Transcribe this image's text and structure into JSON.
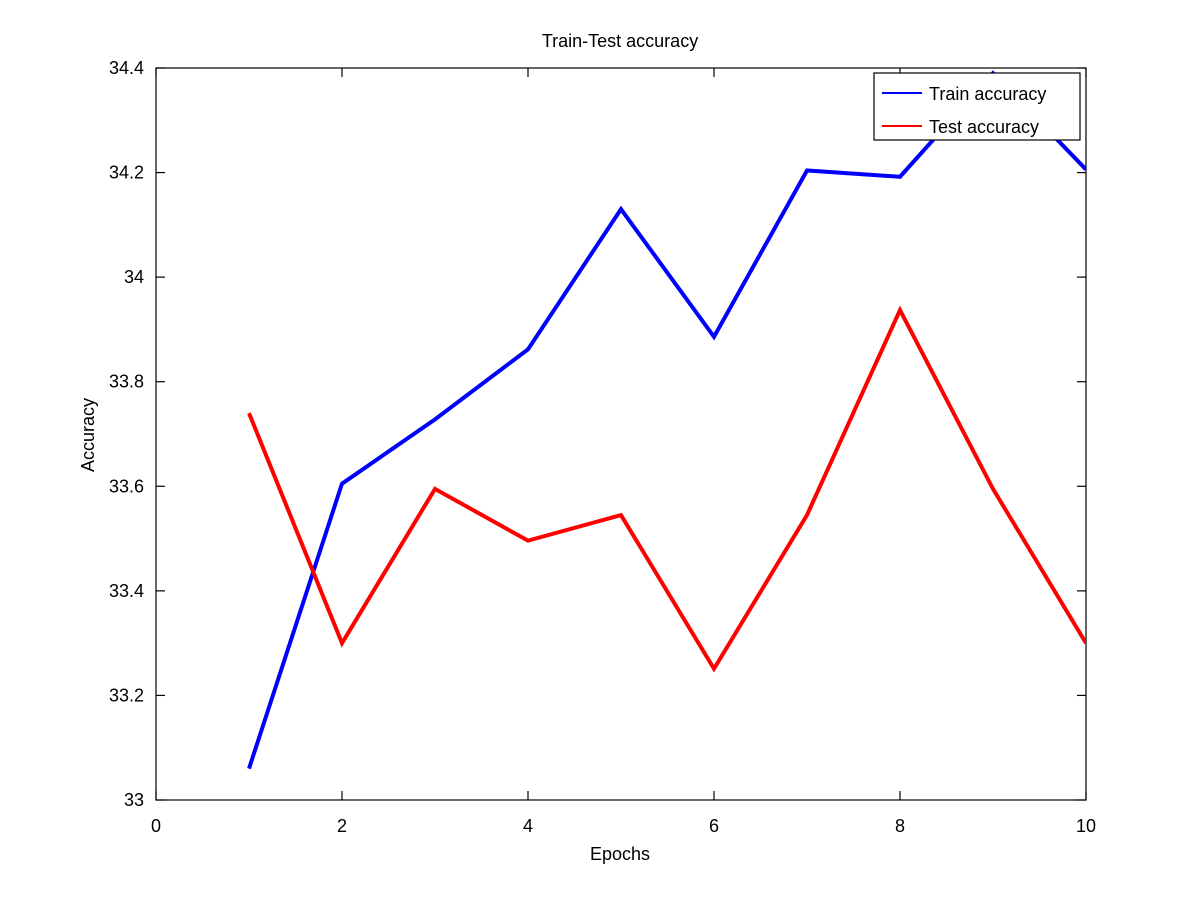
{
  "chart_data": {
    "type": "line",
    "title": "Train-Test accuracy",
    "xlabel": "Epochs",
    "ylabel": "Accuracy",
    "xlim": [
      0,
      10
    ],
    "ylim": [
      33,
      34.4
    ],
    "xticks": [
      0,
      2,
      4,
      6,
      8,
      10
    ],
    "xtick_labels": [
      "0",
      "2",
      "4",
      "6",
      "8",
      "10"
    ],
    "yticks": [
      33,
      33.2,
      33.4,
      33.6,
      33.8,
      34,
      34.2,
      34.4
    ],
    "ytick_labels": [
      "33",
      "33.2",
      "33.4",
      "33.6",
      "33.8",
      "34",
      "34.2",
      "34.4"
    ],
    "grid": false,
    "legend_position": "top-right",
    "x": [
      1,
      2,
      3,
      4,
      5,
      6,
      7,
      8,
      9,
      10
    ],
    "series": [
      {
        "name": "Train accuracy",
        "color": "#0000ff",
        "values": [
          33.06,
          33.605,
          33.728,
          33.862,
          34.13,
          33.886,
          34.204,
          34.192,
          34.39,
          34.206
        ]
      },
      {
        "name": "Test accuracy",
        "color": "#ff0000",
        "values": [
          33.74,
          33.3,
          33.595,
          33.496,
          33.545,
          33.251,
          33.545,
          33.937,
          33.595,
          33.3
        ]
      }
    ]
  }
}
